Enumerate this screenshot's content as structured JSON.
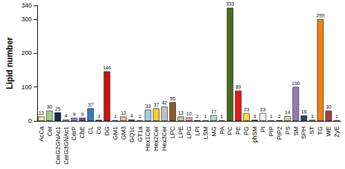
{
  "chart_data": {
    "type": "bar",
    "y_label": "Lipid number",
    "categories": [
      "AcCa",
      "Cer",
      "CerG2GNAc1",
      "CerG3GNAc1",
      "CerP",
      "ChE",
      "CL",
      "Co",
      "DG",
      "GM1",
      "GM3",
      "GQ1c",
      "GT1a",
      "Hex1Cer",
      "Hex2Cer",
      "Hex3Cer",
      "LPC",
      "LPE",
      "LPG",
      "LPI",
      "LSM",
      "MG",
      "PA",
      "PC",
      "PE",
      "PG",
      "phSM",
      "PI",
      "PIP",
      "PIP2",
      "PS",
      "SM",
      "SPH",
      "ST",
      "TG",
      "WE",
      "ZyE"
    ],
    "values": [
      13,
      30,
      25,
      4,
      9,
      9,
      37,
      3,
      146,
      1,
      13,
      4,
      1,
      33,
      37,
      42,
      55,
      13,
      10,
      2,
      1,
      17,
      1,
      333,
      89,
      23,
      3,
      23,
      1,
      2,
      14,
      100,
      16,
      3,
      299,
      30,
      1
    ],
    "colors": [
      "#f0eaa0",
      "#a0d080",
      "#1a2a5a",
      "#f5d5b0",
      "#9b86c0",
      "#7a4e9a",
      "#2f7fc8",
      "#3a3a3a",
      "#c81515",
      "#e8e8e8",
      "#f0c090",
      "#6a3d9a",
      "#5a1a6a",
      "#a6cee3",
      "#f5d030",
      "#c0c0c0",
      "#8b5a2b",
      "#b0d8a0",
      "#f4a8a8",
      "#e0e0e0",
      "#ffffff",
      "#b8d8d0",
      "#606060",
      "#4a6b1a",
      "#e81818",
      "#f0e030",
      "#303030",
      "#f0f0f0",
      "#b0b0b0",
      "#505050",
      "#c0e0a0",
      "#9878b8",
      "#205060",
      "#c0c0d8",
      "#f08010",
      "#a04040",
      "#5a3a3a"
    ],
    "ylim": [
      0,
      340
    ],
    "yticks": [
      0,
      100,
      200,
      300
    ],
    "data_labels": true,
    "grid": false
  }
}
